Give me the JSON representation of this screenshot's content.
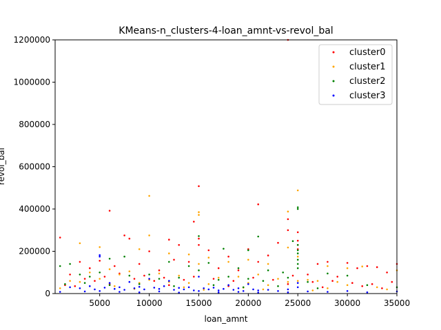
{
  "chart_data": {
    "type": "scatter",
    "title": "KMeans-n_clusters-4-loan_amnt-vs-revol_bal",
    "xlabel": "loan_amnt",
    "ylabel": "revol_bal",
    "xlim": [
      500,
      35000
    ],
    "ylim": [
      0,
      1200000
    ],
    "xticks": [
      5000,
      10000,
      15000,
      20000,
      25000,
      30000,
      35000
    ],
    "yticks": [
      0,
      200000,
      400000,
      600000,
      800000,
      1000000,
      1200000
    ],
    "legend_position": "top-right",
    "series": [
      {
        "name": "cluster0",
        "color": "#ff0000",
        "points": [
          [
            1000,
            265000
          ],
          [
            6000,
            392000
          ],
          [
            15000,
            508000
          ],
          [
            21000,
            422000
          ],
          [
            24000,
            1200000
          ],
          [
            24000,
            352000
          ],
          [
            25000,
            290000
          ],
          [
            14500,
            340000
          ],
          [
            7500,
            275000
          ],
          [
            8000,
            260000
          ],
          [
            10000,
            200000
          ],
          [
            12000,
            255000
          ],
          [
            13000,
            230000
          ],
          [
            16000,
            205000
          ],
          [
            18000,
            175000
          ],
          [
            20000,
            210000
          ],
          [
            22000,
            180000
          ],
          [
            23000,
            240000
          ],
          [
            24000,
            300000
          ],
          [
            25000,
            250000
          ],
          [
            25000,
            230000
          ],
          [
            25000,
            210000
          ],
          [
            27000,
            140000
          ],
          [
            28000,
            150000
          ],
          [
            30000,
            145000
          ],
          [
            31000,
            120000
          ],
          [
            32000,
            130000
          ],
          [
            33000,
            125000
          ],
          [
            34000,
            100000
          ],
          [
            35000,
            140000
          ],
          [
            3000,
            150000
          ],
          [
            4000,
            120000
          ],
          [
            5000,
            155000
          ],
          [
            6500,
            130000
          ],
          [
            9000,
            140000
          ],
          [
            11000,
            110000
          ],
          [
            12500,
            160000
          ],
          [
            14000,
            150000
          ],
          [
            15000,
            260000
          ],
          [
            15000,
            230000
          ],
          [
            17000,
            120000
          ],
          [
            19000,
            110000
          ],
          [
            21000,
            150000
          ],
          [
            26000,
            90000
          ],
          [
            29000,
            80000
          ],
          [
            2000,
            90000
          ],
          [
            3500,
            70000
          ],
          [
            4500,
            60000
          ],
          [
            5500,
            80000
          ],
          [
            7000,
            95000
          ],
          [
            8500,
            70000
          ],
          [
            9500,
            85000
          ],
          [
            10500,
            60000
          ],
          [
            11500,
            75000
          ],
          [
            13500,
            65000
          ],
          [
            14500,
            80000
          ],
          [
            16500,
            70000
          ],
          [
            18500,
            60000
          ],
          [
            20500,
            75000
          ],
          [
            22500,
            65000
          ],
          [
            24500,
            85000
          ],
          [
            26500,
            55000
          ],
          [
            28500,
            60000
          ],
          [
            30500,
            50000
          ],
          [
            32500,
            45000
          ],
          [
            34500,
            55000
          ],
          [
            1500,
            40000
          ],
          [
            2500,
            35000
          ],
          [
            6000,
            45000
          ],
          [
            12000,
            40000
          ],
          [
            18000,
            35000
          ],
          [
            24000,
            45000
          ],
          [
            27500,
            30000
          ],
          [
            31500,
            35000
          ],
          [
            33500,
            25000
          ]
        ]
      },
      {
        "name": "cluster1",
        "color": "#ffa500",
        "points": [
          [
            10000,
            462000
          ],
          [
            25000,
            488000
          ],
          [
            15000,
            385000
          ],
          [
            15000,
            372000
          ],
          [
            24000,
            388000
          ],
          [
            3000,
            238000
          ],
          [
            10000,
            275000
          ],
          [
            5000,
            220000
          ],
          [
            9000,
            210000
          ],
          [
            24000,
            218000
          ],
          [
            12000,
            190000
          ],
          [
            14000,
            185000
          ],
          [
            16000,
            170000
          ],
          [
            18000,
            150000
          ],
          [
            20000,
            160000
          ],
          [
            22000,
            140000
          ],
          [
            25000,
            175000
          ],
          [
            28000,
            130000
          ],
          [
            30000,
            120000
          ],
          [
            31500,
            128000
          ],
          [
            35000,
            110000
          ],
          [
            4000,
            100000
          ],
          [
            6000,
            115000
          ],
          [
            7000,
            90000
          ],
          [
            8000,
            105000
          ],
          [
            11000,
            95000
          ],
          [
            13000,
            85000
          ],
          [
            15000,
            140000
          ],
          [
            17000,
            75000
          ],
          [
            19000,
            80000
          ],
          [
            21000,
            90000
          ],
          [
            23000,
            70000
          ],
          [
            26000,
            65000
          ],
          [
            27000,
            60000
          ],
          [
            29000,
            55000
          ],
          [
            2000,
            60000
          ],
          [
            3000,
            55000
          ],
          [
            5000,
            70000
          ],
          [
            9000,
            50000
          ],
          [
            10000,
            65000
          ],
          [
            12000,
            55000
          ],
          [
            14000,
            50000
          ],
          [
            16000,
            45000
          ],
          [
            18000,
            40000
          ],
          [
            20000,
            50000
          ],
          [
            22000,
            40000
          ],
          [
            24000,
            55000
          ],
          [
            25000,
            60000
          ],
          [
            30000,
            40000
          ],
          [
            33000,
            30000
          ],
          [
            1000,
            25000
          ],
          [
            6500,
            35000
          ],
          [
            13500,
            30000
          ],
          [
            19500,
            28000
          ],
          [
            28000,
            25000
          ],
          [
            34000,
            20000
          ],
          [
            8500,
            22000
          ],
          [
            15500,
            18000
          ],
          [
            21500,
            20000
          ],
          [
            26500,
            15000
          ]
        ]
      },
      {
        "name": "cluster2",
        "color": "#008000",
        "points": [
          [
            25000,
            408000
          ],
          [
            25000,
            400000
          ],
          [
            15000,
            272000
          ],
          [
            21000,
            270000
          ],
          [
            24500,
            248000
          ],
          [
            17500,
            212000
          ],
          [
            20000,
            205000
          ],
          [
            25000,
            230000
          ],
          [
            25000,
            205000
          ],
          [
            25000,
            190000
          ],
          [
            1000,
            130000
          ],
          [
            2000,
            140000
          ],
          [
            6000,
            165000
          ],
          [
            7500,
            175000
          ],
          [
            12000,
            150000
          ],
          [
            14000,
            130000
          ],
          [
            16000,
            145000
          ],
          [
            19000,
            120000
          ],
          [
            22000,
            110000
          ],
          [
            23500,
            100000
          ],
          [
            25000,
            160000
          ],
          [
            25000,
            140000
          ],
          [
            25000,
            120000
          ],
          [
            28000,
            95000
          ],
          [
            30000,
            85000
          ],
          [
            3000,
            90000
          ],
          [
            4000,
            80000
          ],
          [
            5000,
            100000
          ],
          [
            8000,
            85000
          ],
          [
            10000,
            90000
          ],
          [
            11000,
            70000
          ],
          [
            13000,
            75000
          ],
          [
            15000,
            110000
          ],
          [
            17000,
            65000
          ],
          [
            18000,
            80000
          ],
          [
            20000,
            70000
          ],
          [
            21500,
            60000
          ],
          [
            24000,
            75000
          ],
          [
            26000,
            55000
          ],
          [
            32000,
            40000
          ],
          [
            1500,
            45000
          ],
          [
            3500,
            50000
          ],
          [
            6000,
            40000
          ],
          [
            9000,
            45000
          ],
          [
            12500,
            35000
          ],
          [
            16500,
            40000
          ],
          [
            19500,
            30000
          ],
          [
            23000,
            35000
          ],
          [
            27000,
            25000
          ],
          [
            35000,
            30000
          ]
        ]
      },
      {
        "name": "cluster3",
        "color": "#0000ff",
        "points": [
          [
            5000,
            182000
          ],
          [
            5000,
            175000
          ],
          [
            10000,
            70000
          ],
          [
            15000,
            80000
          ],
          [
            12000,
            60000
          ],
          [
            8000,
            55000
          ],
          [
            6000,
            50000
          ],
          [
            20000,
            45000
          ],
          [
            25000,
            50000
          ],
          [
            18000,
            40000
          ],
          [
            2000,
            30000
          ],
          [
            3000,
            25000
          ],
          [
            4000,
            35000
          ],
          [
            4500,
            20000
          ],
          [
            5500,
            28000
          ],
          [
            6500,
            22000
          ],
          [
            7000,
            30000
          ],
          [
            7500,
            18000
          ],
          [
            8500,
            25000
          ],
          [
            9000,
            32000
          ],
          [
            9500,
            20000
          ],
          [
            10500,
            28000
          ],
          [
            11000,
            22000
          ],
          [
            11500,
            35000
          ],
          [
            12500,
            18000
          ],
          [
            13000,
            27000
          ],
          [
            13500,
            20000
          ],
          [
            14000,
            30000
          ],
          [
            14500,
            15000
          ],
          [
            15500,
            25000
          ],
          [
            16000,
            20000
          ],
          [
            16500,
            28000
          ],
          [
            17000,
            15000
          ],
          [
            17500,
            22000
          ],
          [
            18500,
            18000
          ],
          [
            19000,
            25000
          ],
          [
            19500,
            12000
          ],
          [
            20500,
            20000
          ],
          [
            21000,
            15000
          ],
          [
            22000,
            18000
          ],
          [
            23000,
            12000
          ],
          [
            24000,
            20000
          ],
          [
            25000,
            30000
          ],
          [
            26000,
            10000
          ],
          [
            28000,
            8000
          ],
          [
            30000,
            12000
          ],
          [
            32000,
            6000
          ],
          [
            35000,
            10000
          ],
          [
            1000,
            8000
          ],
          [
            3500,
            10000
          ],
          [
            5000,
            12000
          ],
          [
            7000,
            8000
          ],
          [
            9000,
            6000
          ],
          [
            11000,
            10000
          ],
          [
            13000,
            5000
          ],
          [
            15000,
            12000
          ],
          [
            17000,
            6000
          ],
          [
            19000,
            8000
          ],
          [
            21000,
            5000
          ],
          [
            24000,
            6000
          ]
        ]
      }
    ]
  }
}
